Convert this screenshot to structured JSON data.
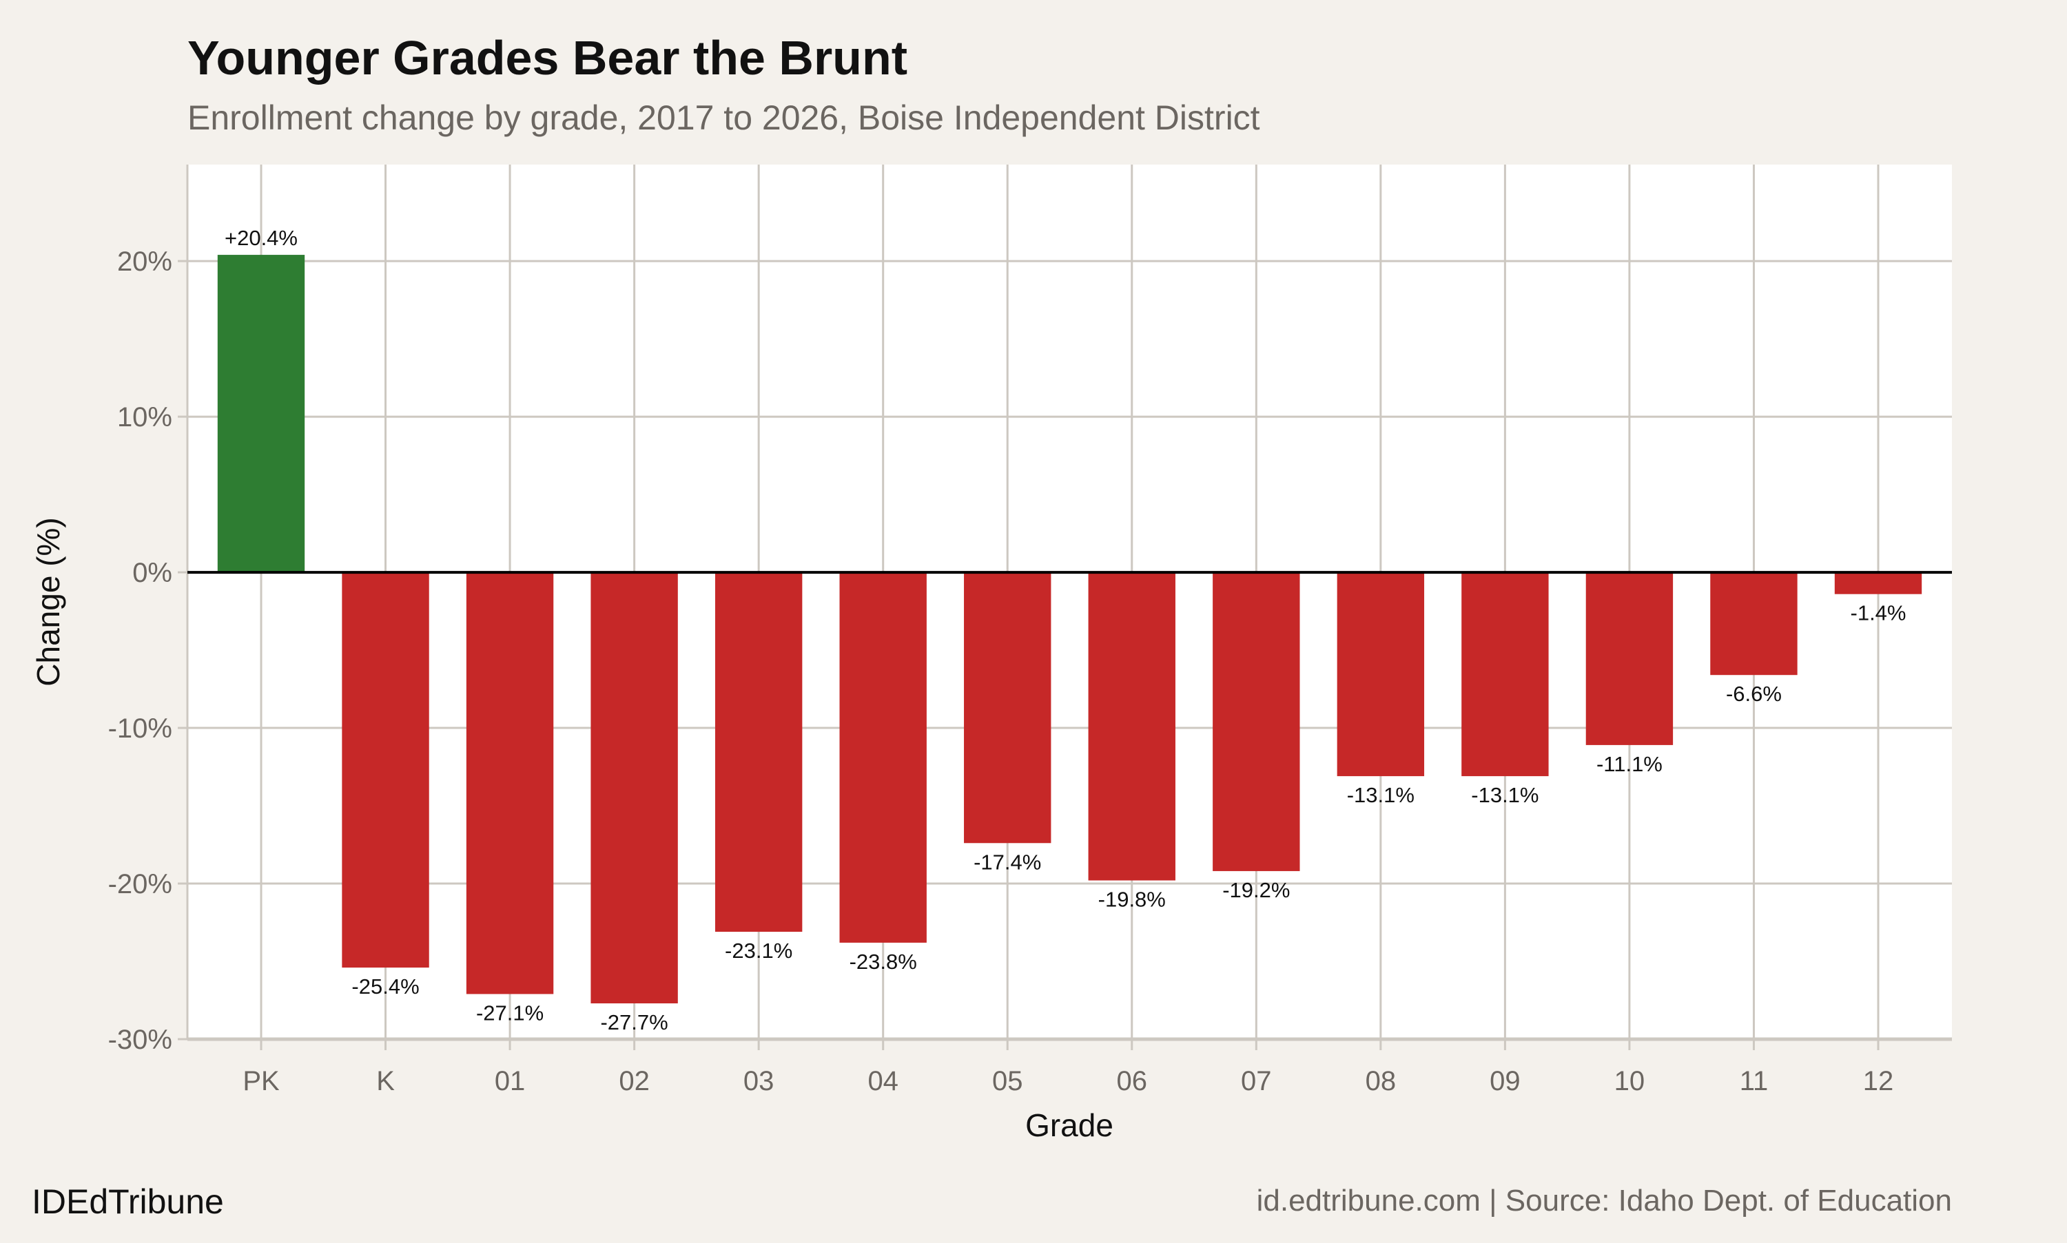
{
  "chart_data": {
    "type": "bar",
    "title": "Younger Grades Bear the Brunt",
    "subtitle": "Enrollment change by grade, 2017 to 2026, Boise Independent District",
    "xlabel": "Grade",
    "ylabel": "Change (%)",
    "categories": [
      "PK",
      "K",
      "01",
      "02",
      "03",
      "04",
      "05",
      "06",
      "07",
      "08",
      "09",
      "10",
      "11",
      "12"
    ],
    "values": [
      20.4,
      -25.4,
      -27.1,
      -27.7,
      -23.1,
      -23.8,
      -17.4,
      -19.8,
      -19.2,
      -13.1,
      -13.1,
      -11.1,
      -6.6,
      -1.4
    ],
    "data_labels": [
      "+20.4%",
      "-25.4%",
      "-27.1%",
      "-27.7%",
      "-23.1%",
      "-23.8%",
      "-17.4%",
      "-19.8%",
      "-19.2%",
      "-13.1%",
      "-13.1%",
      "-11.1%",
      "-6.6%",
      "-1.4%"
    ],
    "yticks": [
      20,
      10,
      0,
      -10,
      -20,
      -30
    ],
    "ytick_labels": [
      "20%",
      "10%",
      "0%",
      "-10%",
      "-20%",
      "-30%"
    ],
    "ylim": [
      -30,
      26.2
    ],
    "grid": true,
    "colors": {
      "positive": "#2e7d32",
      "negative": "#c62828",
      "background": "#f4f1ec",
      "panel": "#ffffff",
      "grid": "#cdc8c1",
      "zero_line": "#000000"
    }
  },
  "footer": {
    "brand": "IDEdTribune",
    "source": "id.edtribune.com | Source: Idaho Dept. of Education"
  }
}
